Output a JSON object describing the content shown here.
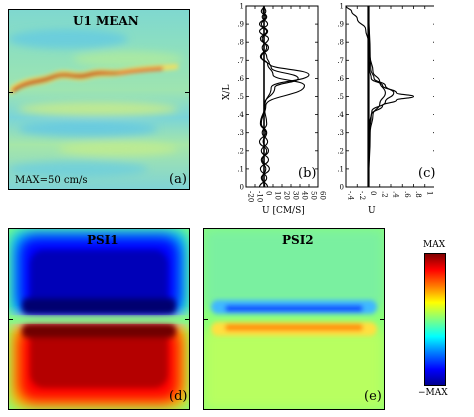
{
  "chart_data": [
    {
      "type": "heatmap",
      "panel": "(a)",
      "title": "U1 MEAN",
      "annotation": "MAX=50 cm/s",
      "field": "mean velocity U1; red meandering jet near X/L≈0.6",
      "colormap": "jet"
    },
    {
      "type": "line",
      "panel": "(b)",
      "xlabel": "U [CM/S]",
      "ylabel": "X/L",
      "xlim": [
        -20,
        60
      ],
      "ylim": [
        0,
        1
      ],
      "xticks": [
        "-20",
        "-10",
        "0",
        "10",
        "20",
        "30",
        "40",
        "50",
        "60"
      ],
      "yticks": [
        "0",
        ".1",
        ".2",
        ".3",
        ".4",
        ".5",
        ".6",
        ".7",
        ".8",
        ".9",
        "1"
      ],
      "series": [
        {
          "x": [
            4,
            -3,
            6,
            -2,
            3,
            -5,
            2,
            -4,
            1,
            8,
            50,
            6,
            3,
            -2,
            5,
            -5,
            4,
            -2,
            2,
            0
          ],
          "y": [
            0.0,
            0.05,
            0.1,
            0.15,
            0.2,
            0.25,
            0.3,
            0.35,
            0.45,
            0.55,
            0.62,
            0.68,
            0.72,
            0.77,
            0.82,
            0.86,
            0.9,
            0.94,
            0.97,
            1.0
          ]
        },
        {
          "x": [
            -5,
            3,
            -4,
            5,
            -3,
            4,
            -2,
            3,
            0,
            12,
            38,
            8,
            -3,
            5,
            -4,
            3,
            -5,
            2,
            -3,
            0
          ],
          "y": [
            0.0,
            0.05,
            0.1,
            0.15,
            0.2,
            0.25,
            0.3,
            0.35,
            0.45,
            0.55,
            0.6,
            0.66,
            0.72,
            0.77,
            0.82,
            0.86,
            0.9,
            0.94,
            0.97,
            1.0
          ]
        },
        {
          "x": [
            1,
            -2,
            2,
            -3,
            5,
            -1,
            3,
            -3,
            2,
            45,
            10,
            4,
            -4,
            3,
            -2,
            4,
            -3,
            3,
            -1,
            0
          ],
          "y": [
            0.0,
            0.05,
            0.1,
            0.15,
            0.2,
            0.25,
            0.3,
            0.35,
            0.45,
            0.56,
            0.62,
            0.68,
            0.72,
            0.77,
            0.82,
            0.86,
            0.9,
            0.94,
            0.97,
            1.0
          ]
        }
      ]
    },
    {
      "type": "line",
      "panel": "(c)",
      "xlabel": "U",
      "xlim": [
        -0.4,
        1.2
      ],
      "ylim": [
        0,
        1
      ],
      "xticks": [
        "-.4",
        "-.2",
        "0",
        ".2",
        ".4",
        ".6",
        ".8",
        "1",
        "1.2"
      ],
      "yticks": [
        "0",
        ".1",
        ".2",
        ".3",
        ".4",
        ".5",
        ".6",
        ".7",
        ".8",
        ".9",
        "1"
      ],
      "series": [
        {
          "x": [
            0,
            0.02,
            0.05,
            0.25,
            0.5,
            0.8,
            0.5,
            0.25,
            0.05,
            0.02,
            0,
            0
          ],
          "y": [
            0.0,
            0.3,
            0.4,
            0.45,
            0.48,
            0.5,
            0.52,
            0.56,
            0.6,
            0.65,
            0.8,
            1.0
          ]
        },
        {
          "x": [
            0,
            0.02,
            0.06,
            0.3,
            0.45,
            0.3,
            0.1,
            0.04,
            0.02,
            0
          ],
          "y": [
            0.0,
            0.35,
            0.42,
            0.47,
            0.52,
            0.56,
            0.6,
            0.65,
            0.75,
            1.0
          ]
        },
        {
          "x": [
            0,
            0.03,
            0.08,
            0.2,
            0.3,
            0.2,
            0.08,
            0.03,
            0
          ],
          "y": [
            0.0,
            0.3,
            0.4,
            0.46,
            0.52,
            0.58,
            0.64,
            0.72,
            1.0
          ]
        },
        {
          "x": [
            -0.4,
            -0.3,
            -0.2,
            -0.05,
            0
          ],
          "y": [
            1.0,
            0.97,
            0.93,
            0.87,
            0.8
          ]
        }
      ]
    },
    {
      "type": "heatmap",
      "panel": "(d)",
      "title": "PSI1",
      "field": "streamfunction layer 1: negative (blue) upper half, positive (red) lower half",
      "colormap": "jet"
    },
    {
      "type": "heatmap",
      "panel": "(e)",
      "title": "PSI2",
      "field": "streamfunction layer 2: weak; thin blue band above, thin orange band below mid-line",
      "colormap": "jet"
    },
    {
      "type": "colorbar",
      "labels": [
        "MAX",
        "−MAX"
      ],
      "colormap": "jet"
    }
  ],
  "colors": {
    "jet_dark_blue": "#00008f",
    "jet_blue": "#0000ff",
    "jet_cyan": "#00ffff",
    "jet_green": "#80ff80",
    "jet_yellow": "#ffff00",
    "jet_red": "#ff0000",
    "jet_dark_red": "#800000"
  }
}
